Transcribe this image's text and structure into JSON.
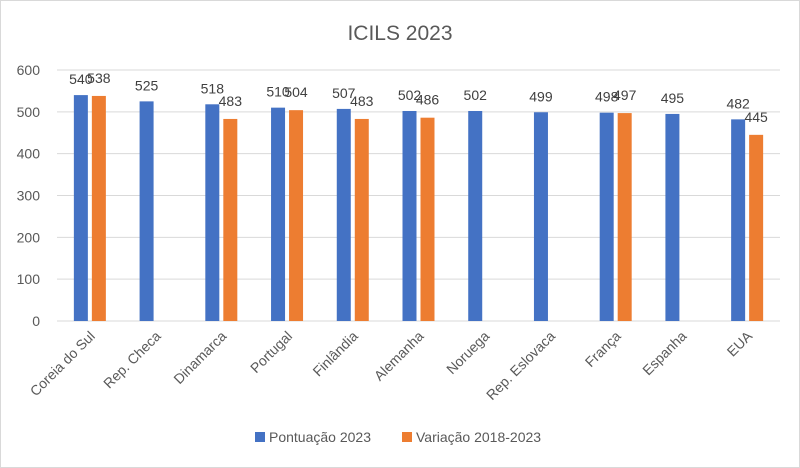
{
  "chart_data": {
    "type": "bar",
    "title": "ICILS 2023",
    "categories": [
      "Coreia do Sul",
      "Rep. Checa",
      "Dinamarca",
      "Portugal",
      "Finlândia",
      "Alemanha",
      "Noruega",
      "Rep. Eslovaca",
      "França",
      "Espanha",
      "EUA"
    ],
    "series": [
      {
        "name": "Pontuação 2023",
        "color": "#4472c4",
        "values": [
          540,
          525,
          518,
          510,
          507,
          502,
          502,
          499,
          498,
          495,
          482
        ]
      },
      {
        "name": "Variação 2018-2023",
        "color": "#ed7d31",
        "values": [
          538,
          null,
          483,
          504,
          483,
          486,
          null,
          null,
          497,
          null,
          445
        ]
      }
    ],
    "ylim": [
      0,
      600
    ],
    "yticks": [
      0,
      100,
      200,
      300,
      400,
      500,
      600
    ],
    "grid": true,
    "legend": "bottom",
    "data_labels": true
  }
}
